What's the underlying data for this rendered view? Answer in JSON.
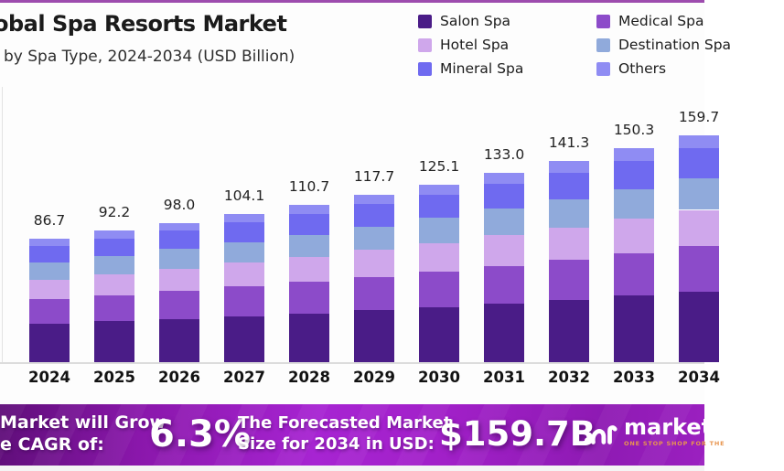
{
  "meta": {
    "top_bar_color": "#9d4cae",
    "background_color": "#fdfdfd"
  },
  "header": {
    "title": "obal Spa Resorts Market",
    "subtitle": "by Spa Type, 2024-2034 (USD Billion)"
  },
  "legend": {
    "position": "top-right",
    "items": [
      {
        "label": "Salon Spa",
        "color": "#4a1c87"
      },
      {
        "label": "Medical Spa",
        "color": "#8c4bc9"
      },
      {
        "label": "Hotel Spa",
        "color": "#cfa7eb"
      },
      {
        "label": "Destination Spa",
        "color": "#90aadb"
      },
      {
        "label": "Mineral Spa",
        "color": "#6f6af0"
      },
      {
        "label": "Others",
        "color": "#8f8cf3"
      }
    ]
  },
  "chart_data": {
    "type": "bar",
    "stacked": true,
    "stack_order": "bottom-to-top",
    "grid": false,
    "legend_position": "top-right",
    "title": "obal Spa Resorts Market",
    "subtitle": "by Spa Type, 2024-2034 (USD Billion)",
    "xlabel": "",
    "ylabel": "USD Billion",
    "categories": [
      "2024",
      "2025",
      "2026",
      "2027",
      "2028",
      "2029",
      "2030",
      "2031",
      "2032",
      "2033",
      "2034"
    ],
    "totals": [
      "86.7",
      "92.2",
      "98.0",
      "104.1",
      "110.7",
      "117.7",
      "125.1",
      "133.0",
      "141.3",
      "150.3",
      "159.7"
    ],
    "series": [
      {
        "name": "Salon Spa",
        "color": "#4a1c87",
        "values": [
          26.9,
          28.6,
          30.4,
          32.3,
          34.3,
          36.5,
          38.8,
          41.2,
          43.8,
          46.6,
          49.5
        ]
      },
      {
        "name": "Medical Spa",
        "color": "#8c4bc9",
        "values": [
          17.3,
          18.4,
          19.6,
          20.8,
          22.1,
          23.5,
          25.0,
          26.6,
          28.3,
          30.1,
          31.9
        ]
      },
      {
        "name": "Hotel Spa",
        "color": "#cfa7eb",
        "values": [
          13.9,
          14.8,
          15.7,
          16.7,
          17.7,
          18.8,
          20.0,
          21.3,
          22.6,
          24.0,
          25.6
        ]
      },
      {
        "name": "Destination Spa",
        "color": "#90aadb",
        "values": [
          12.1,
          12.9,
          13.7,
          14.6,
          15.5,
          16.5,
          17.5,
          18.6,
          19.8,
          21.0,
          22.4
        ]
      },
      {
        "name": "Mineral Spa",
        "color": "#6f6af0",
        "values": [
          11.5,
          12.3,
          13.0,
          13.8,
          14.7,
          15.7,
          16.6,
          17.7,
          18.8,
          20.0,
          21.2
        ]
      },
      {
        "name": "Others",
        "color": "#8f8cf3",
        "values": [
          4.9,
          5.3,
          5.6,
          5.9,
          6.3,
          6.7,
          7.1,
          7.6,
          8.1,
          8.6,
          9.1
        ]
      }
    ]
  },
  "banner": {
    "growth_line1": "Market will Grow",
    "growth_line2": "e CAGR of:",
    "cagr_value": "6.3%",
    "forecast_line1": "The Forecasted Market",
    "forecast_line2": "Size for 2034 in USD:",
    "market_size": "$159.7B"
  },
  "logo": {
    "text": "market.",
    "tagline": "ONE STOP SHOP FOR THE"
  }
}
